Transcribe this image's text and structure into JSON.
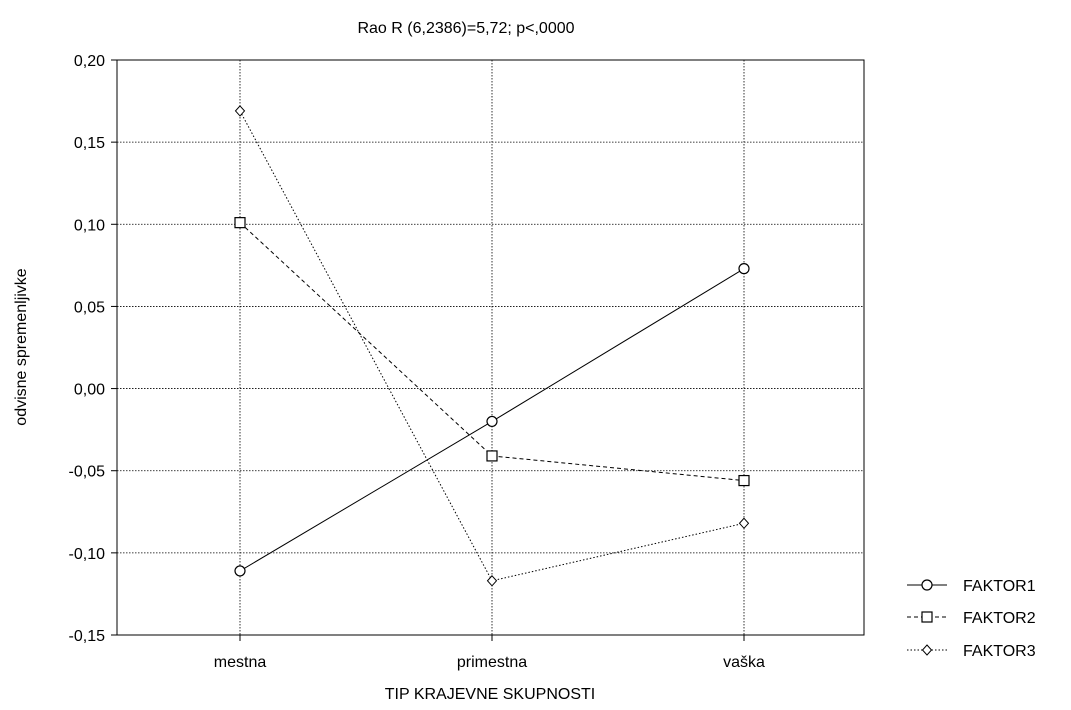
{
  "chart_data": {
    "type": "line",
    "title": "Rao R (6,2386)=5,72; p<,0000",
    "xlabel": "TIP KRAJEVNE SKUPNOSTI",
    "ylabel": "odvisne spremenljivke",
    "categories": [
      "mestna",
      "primestna",
      "vaška"
    ],
    "ylim": [
      -0.15,
      0.2
    ],
    "yticks": [
      -0.15,
      -0.1,
      -0.05,
      0.0,
      0.05,
      0.1,
      0.15,
      0.2
    ],
    "ytick_labels": [
      "-0,15",
      "-0,10",
      "-0,05",
      "0,00",
      "0,05",
      "0,10",
      "0,15",
      "0,20"
    ],
    "grid": true,
    "legend_position": "bottom-right outside",
    "series": [
      {
        "name": "FAKTOR1",
        "values": [
          -0.111,
          -0.02,
          0.073
        ],
        "marker": "circle",
        "dash": "solid"
      },
      {
        "name": "FAKTOR2",
        "values": [
          0.101,
          -0.041,
          -0.056
        ],
        "marker": "square",
        "dash": "dashed"
      },
      {
        "name": "FAKTOR3",
        "values": [
          0.169,
          -0.117,
          -0.082
        ],
        "marker": "diamond",
        "dash": "dotted"
      }
    ]
  }
}
